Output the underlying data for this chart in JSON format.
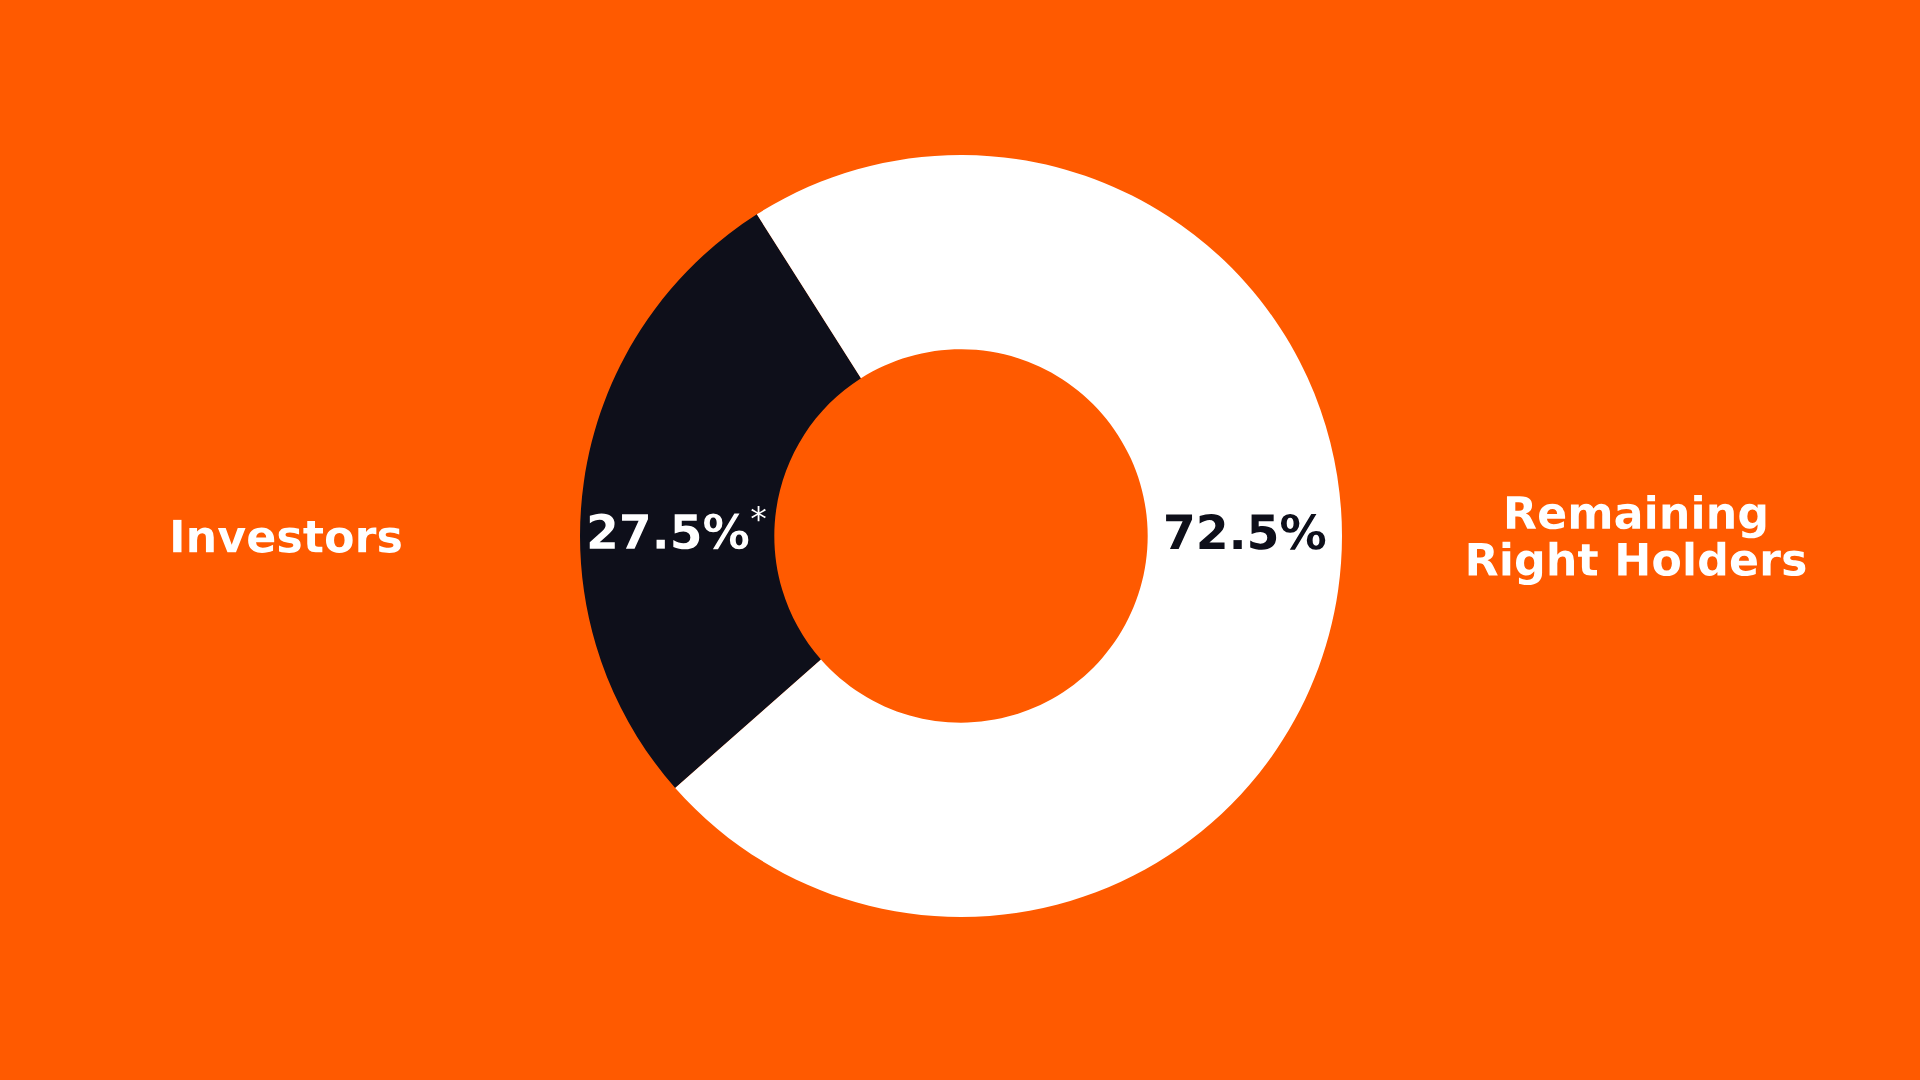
{
  "chart_data": {
    "type": "donut",
    "categories": [
      "Investors",
      "Remaining\nRight Holders"
    ],
    "values": [
      27.5,
      72.5
    ],
    "colors": [
      "#0e0f1a",
      "#ffffff"
    ],
    "value_labels": [
      "27.5%$^{*}$",
      "72.5%"
    ]
  }
}
